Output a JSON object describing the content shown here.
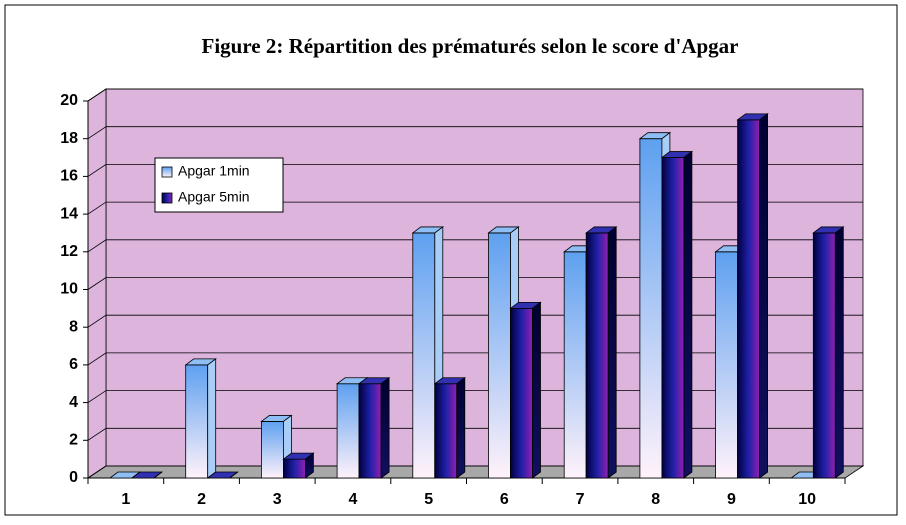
{
  "chart_data": {
    "type": "bar3d",
    "title": "Figure 2: Répartition des prématurés selon le score d'Apgar",
    "categories": [
      "1",
      "2",
      "3",
      "4",
      "5",
      "6",
      "7",
      "8",
      "9",
      "10"
    ],
    "series": [
      {
        "name": "Apgar 1min",
        "color": "#5ea0f0",
        "values": [
          0,
          6,
          3,
          5,
          13,
          13,
          12,
          18,
          12,
          0
        ]
      },
      {
        "name": "Apgar 5min",
        "color": "#10107a",
        "values": [
          0,
          0,
          1,
          5,
          5,
          9,
          13,
          17,
          19,
          13
        ]
      }
    ],
    "ylim": [
      0,
      20
    ],
    "yticks": [
      0,
      2,
      4,
      6,
      8,
      10,
      12,
      14,
      16,
      18,
      20
    ],
    "grid": true,
    "legend": "upper-left"
  }
}
